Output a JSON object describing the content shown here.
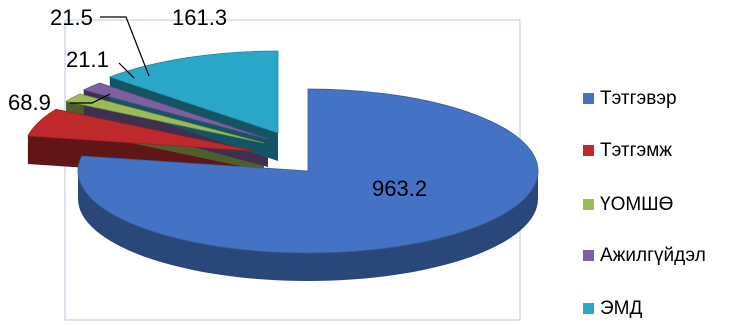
{
  "chart_data": {
    "type": "pie",
    "style": "3d-exploded",
    "title": "",
    "legend_position": "right",
    "slices": [
      {
        "name": "Тэтгэвэр",
        "value": 963.2,
        "label": "963.2",
        "color": "#4472c4"
      },
      {
        "name": "Тэтгэмж",
        "value": 68.9,
        "label": "68.9",
        "color": "#c0292b"
      },
      {
        "name": "ҮОМШӨ",
        "value": 21.1,
        "label": "21.1",
        "color": "#9bbb59"
      },
      {
        "name": "Ажилгүйдэл",
        "value": 21.5,
        "label": "21.5",
        "color": "#7d60a0"
      },
      {
        "name": "ЭМД",
        "value": 161.3,
        "label": "161.3",
        "color": "#2aa7c8"
      }
    ]
  }
}
